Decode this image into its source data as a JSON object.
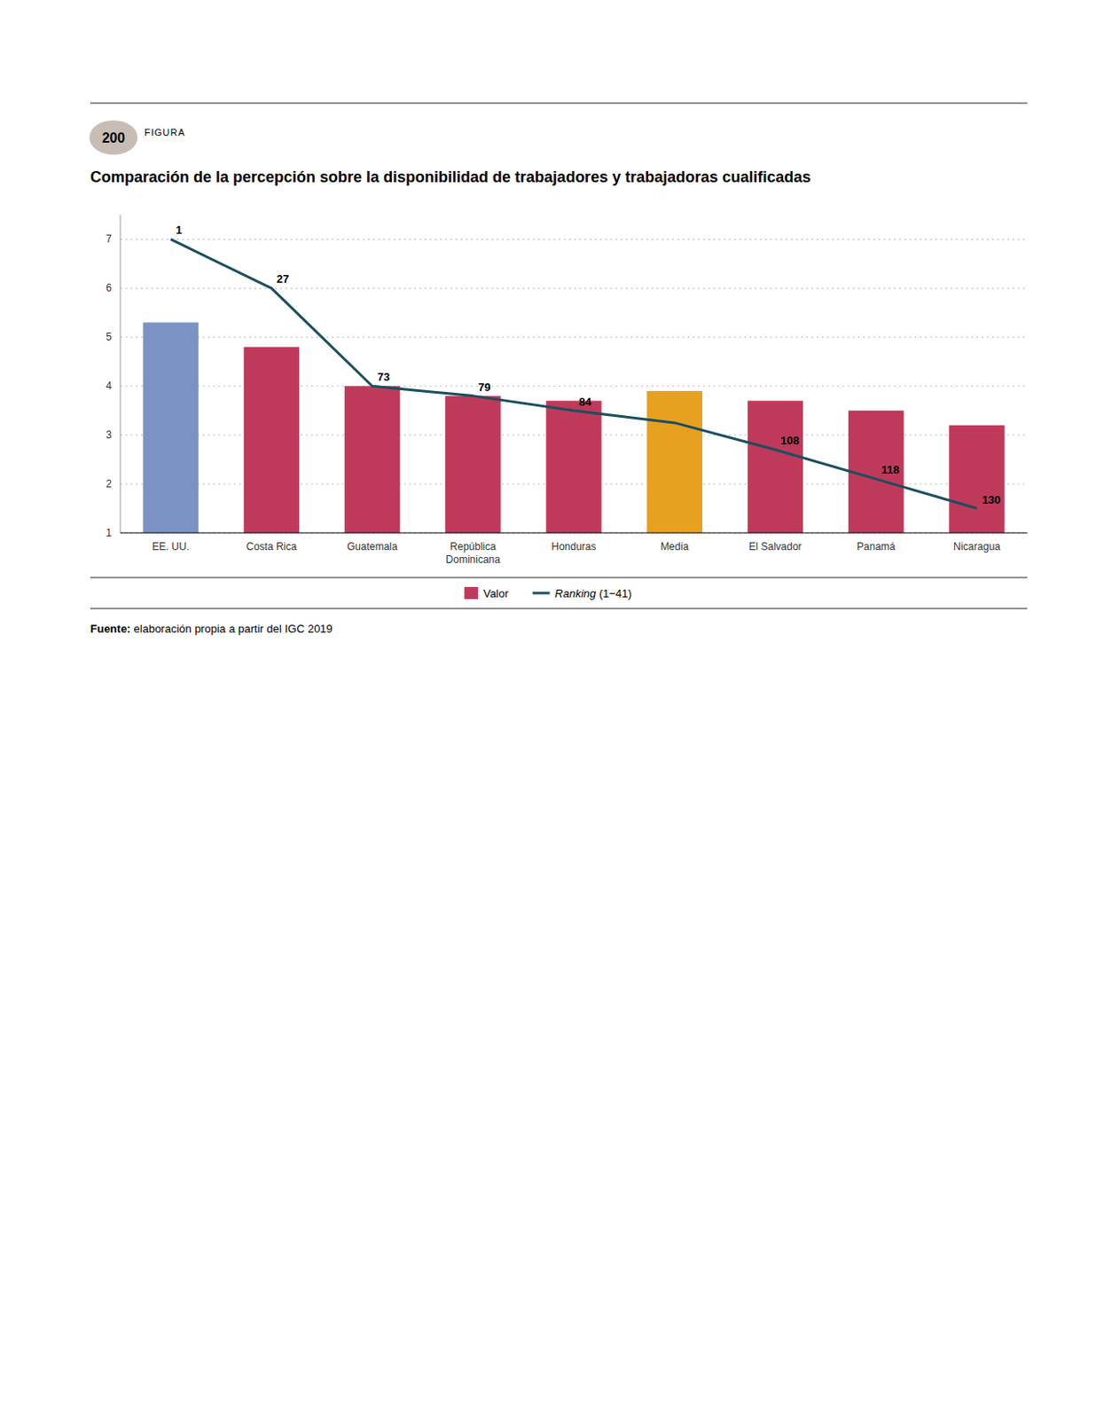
{
  "chart_data": {
    "type": "bar",
    "title": "Comparación de la percepción sobre la disponibilidad de trabajadores y trabajadoras cualificadas",
    "figure_label": "200",
    "figure_prefix": "FIGURA",
    "badge_color": "#c8bdb5",
    "categories": [
      "EE. UU.",
      "Costa Rica",
      "Guatemala",
      "República\nDominicana",
      "Honduras",
      "Media",
      "El Salvador",
      "Panamá",
      "Nicaragua"
    ],
    "series": [
      {
        "name": "Valor",
        "type": "bar",
        "colors": [
          "#7b93c4",
          "#bf3a5a",
          "#bf3a5a",
          "#bf3a5a",
          "#bf3a5a",
          "#e8a020",
          "#bf3a5a",
          "#bf3a5a",
          "#bf3a5a"
        ],
        "values": [
          5.3,
          4.8,
          4.0,
          3.8,
          3.7,
          3.9,
          3.7,
          3.5,
          3.2
        ]
      },
      {
        "name": "Ranking (1−41)",
        "type": "line",
        "color": "#1a4f5e",
        "values": [
          7.0,
          6.0,
          4.0,
          3.8,
          3.5,
          3.25,
          2.7,
          2.1,
          1.5
        ],
        "rankings": [
          1,
          27,
          73,
          79,
          84,
          null,
          108,
          118,
          130
        ]
      }
    ],
    "ylim": [
      1,
      7.5
    ],
    "yticks": [
      1,
      2,
      3,
      4,
      5,
      6,
      7
    ],
    "grid": true,
    "legend": "bottom",
    "source_bold": "Fuente:",
    "source_rest": " elaboración propia a partir del IGC 2019"
  }
}
